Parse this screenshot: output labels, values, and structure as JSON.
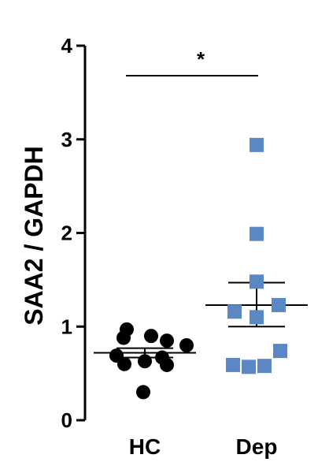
{
  "chart_data": {
    "type": "scatter",
    "ylabel": "SAA2 / GAPDH",
    "ylim": [
      0,
      4
    ],
    "yticks": [
      "0",
      "1",
      "2",
      "3",
      "4"
    ],
    "categories": [
      "HC",
      "Dep"
    ],
    "grid": false,
    "series": [
      {
        "name": "HC",
        "marker": "circle",
        "color": "#000000",
        "values": [
          0.97,
          0.9,
          0.88,
          0.85,
          0.8,
          0.69,
          0.67,
          0.63,
          0.6,
          0.59,
          0.3
        ],
        "mean": 0.72,
        "sem_low": 0.67,
        "sem_high": 0.77
      },
      {
        "name": "Dep",
        "marker": "square",
        "color": "#5b87c5",
        "values": [
          2.94,
          1.99,
          1.48,
          1.23,
          1.16,
          1.1,
          0.74,
          0.59,
          0.58,
          0.57
        ],
        "mean": 1.23,
        "sem_low": 1.0,
        "sem_high": 1.47
      }
    ],
    "significance": {
      "between": [
        "HC",
        "Dep"
      ],
      "label": "*"
    }
  }
}
